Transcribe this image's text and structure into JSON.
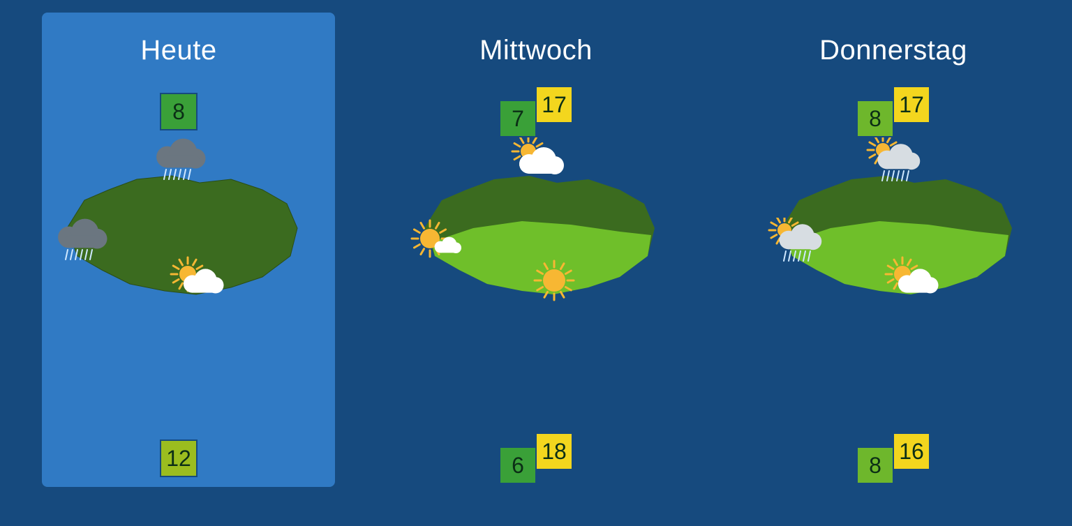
{
  "colors": {
    "page_bg": "#164a7e",
    "selected_bg": "#307ac4",
    "badge_low_green": "#3aa038",
    "badge_mid_green": "#6eb72c",
    "badge_olive": "#9bbd1f",
    "badge_yellow": "#f3d61e",
    "badge_border": "#164a7e",
    "map_north_dark": "#3b6b1f",
    "map_south_light": "#6fbf2a",
    "text": "#ffffff"
  },
  "days": [
    {
      "id": "today",
      "label": "Heute",
      "selected": true,
      "map_light_south": false,
      "temps_top": [
        {
          "value": "8",
          "bg": "#3aa038",
          "kind": "single"
        }
      ],
      "temps_bottom": [
        {
          "value": "12",
          "bg": "#9bbd1f",
          "kind": "single"
        }
      ],
      "icons": {
        "north": "rain-cloud",
        "west": "rain-cloud",
        "south": "sun-cloud"
      }
    },
    {
      "id": "wed",
      "label": "Mittwoch",
      "selected": false,
      "map_light_south": true,
      "temps_top": [
        {
          "value": "7",
          "bg": "#3aa038",
          "kind": "low"
        },
        {
          "value": "17",
          "bg": "#f3d61e",
          "kind": "high"
        }
      ],
      "temps_bottom": [
        {
          "value": "6",
          "bg": "#3aa038",
          "kind": "low"
        },
        {
          "value": "18",
          "bg": "#f3d61e",
          "kind": "high"
        }
      ],
      "icons": {
        "north": "sun-behind-cloud",
        "west": "sun-small-cloud",
        "south": "sun"
      }
    },
    {
      "id": "thu",
      "label": "Donnerstag",
      "selected": false,
      "map_light_south": true,
      "temps_top": [
        {
          "value": "8",
          "bg": "#6eb72c",
          "kind": "low"
        },
        {
          "value": "17",
          "bg": "#f3d61e",
          "kind": "high"
        }
      ],
      "temps_bottom": [
        {
          "value": "8",
          "bg": "#6eb72c",
          "kind": "low"
        },
        {
          "value": "16",
          "bg": "#f3d61e",
          "kind": "high"
        }
      ],
      "icons": {
        "north": "sun-cloud-rain",
        "west": "sun-cloud-rain",
        "south": "sun-cloud"
      }
    }
  ]
}
